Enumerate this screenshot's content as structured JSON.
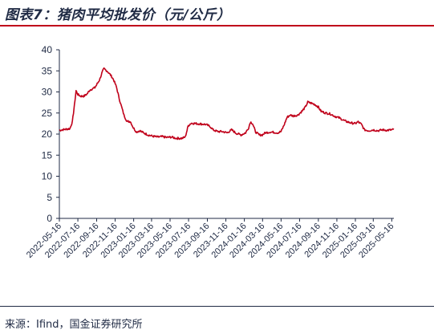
{
  "header": {
    "title": "图表7：猪肉平均批发价（元/公斤）"
  },
  "footer": {
    "source": "来源：Ifind，国金证券研究所"
  },
  "colors": {
    "line": "#c0001a",
    "text": "#1f2a44",
    "rule": "#c0001a"
  },
  "chart_data": {
    "type": "line",
    "title": "",
    "xlabel": "",
    "ylabel": "",
    "ylim": [
      0,
      40
    ],
    "yticks": [
      0,
      5,
      10,
      15,
      20,
      25,
      30,
      35,
      40
    ],
    "xlim": [
      "2022-05-16",
      "2025-05-23"
    ],
    "xtick_labels": [
      "2022-05-16",
      "2022-07-16",
      "2022-09-16",
      "2022-11-16",
      "2023-01-16",
      "2023-03-16",
      "2023-05-16",
      "2023-07-16",
      "2023-09-16",
      "2023-11-16",
      "2024-01-16",
      "2024-03-16",
      "2024-05-16",
      "2024-07-16",
      "2024-09-16",
      "2024-11-16",
      "2025-01-16",
      "2025-03-16",
      "2025-05-16"
    ],
    "grid": false,
    "legend": "none",
    "series": [
      {
        "name": "",
        "points": [
          [
            "2022-05-16",
            20.9
          ],
          [
            "2022-06-01",
            21.1
          ],
          [
            "2022-06-20",
            21.3
          ],
          [
            "2022-06-28",
            23.0
          ],
          [
            "2022-07-05",
            27.0
          ],
          [
            "2022-07-10",
            30.3
          ],
          [
            "2022-07-16",
            29.4
          ],
          [
            "2022-07-25",
            29.0
          ],
          [
            "2022-08-05",
            29.0
          ],
          [
            "2022-08-15",
            29.5
          ],
          [
            "2022-08-25",
            30.5
          ],
          [
            "2022-09-10",
            31.0
          ],
          [
            "2022-09-25",
            32.8
          ],
          [
            "2022-10-05",
            34.8
          ],
          [
            "2022-10-10",
            35.5
          ],
          [
            "2022-10-20",
            35.0
          ],
          [
            "2022-11-01",
            34.0
          ],
          [
            "2022-11-10",
            33.0
          ],
          [
            "2022-11-20",
            31.2
          ],
          [
            "2022-12-01",
            28.0
          ],
          [
            "2022-12-15",
            24.5
          ],
          [
            "2022-12-25",
            23.0
          ],
          [
            "2023-01-05",
            23.0
          ],
          [
            "2023-01-15",
            21.5
          ],
          [
            "2023-01-25",
            20.5
          ],
          [
            "2023-02-05",
            20.8
          ],
          [
            "2023-02-20",
            20.2
          ],
          [
            "2023-03-05",
            19.8
          ],
          [
            "2023-03-20",
            19.5
          ],
          [
            "2023-04-05",
            19.3
          ],
          [
            "2023-04-20",
            19.4
          ],
          [
            "2023-05-05",
            19.2
          ],
          [
            "2023-05-20",
            19.3
          ],
          [
            "2023-06-05",
            19.0
          ],
          [
            "2023-06-25",
            19.0
          ],
          [
            "2023-07-05",
            19.3
          ],
          [
            "2023-07-15",
            22.0
          ],
          [
            "2023-07-25",
            22.6
          ],
          [
            "2023-08-10",
            22.5
          ],
          [
            "2023-08-25",
            22.4
          ],
          [
            "2023-09-10",
            22.3
          ],
          [
            "2023-09-25",
            21.8
          ],
          [
            "2023-10-05",
            21.0
          ],
          [
            "2023-10-20",
            20.6
          ],
          [
            "2023-11-05",
            20.6
          ],
          [
            "2023-11-20",
            20.3
          ],
          [
            "2023-12-05",
            21.0
          ],
          [
            "2023-12-20",
            20.2
          ],
          [
            "2024-01-05",
            19.8
          ],
          [
            "2024-01-20",
            20.3
          ],
          [
            "2024-01-30",
            21.5
          ],
          [
            "2024-02-05",
            22.9
          ],
          [
            "2024-02-12",
            22.5
          ],
          [
            "2024-02-22",
            20.5
          ],
          [
            "2024-03-05",
            19.8
          ],
          [
            "2024-03-15",
            19.8
          ],
          [
            "2024-03-25",
            20.3
          ],
          [
            "2024-04-10",
            20.5
          ],
          [
            "2024-04-25",
            20.4
          ],
          [
            "2024-05-05",
            20.3
          ],
          [
            "2024-05-16",
            20.6
          ],
          [
            "2024-05-25",
            22.0
          ],
          [
            "2024-06-05",
            24.0
          ],
          [
            "2024-06-15",
            24.5
          ],
          [
            "2024-06-25",
            24.3
          ],
          [
            "2024-07-10",
            24.5
          ],
          [
            "2024-07-25",
            25.5
          ],
          [
            "2024-08-05",
            26.5
          ],
          [
            "2024-08-12",
            27.6
          ],
          [
            "2024-08-25",
            27.3
          ],
          [
            "2024-09-05",
            27.0
          ],
          [
            "2024-09-16",
            26.4
          ],
          [
            "2024-09-25",
            25.4
          ],
          [
            "2024-10-10",
            25.0
          ],
          [
            "2024-10-25",
            24.8
          ],
          [
            "2024-11-10",
            24.2
          ],
          [
            "2024-11-25",
            23.8
          ],
          [
            "2024-12-10",
            23.2
          ],
          [
            "2024-12-25",
            22.8
          ],
          [
            "2025-01-05",
            22.6
          ],
          [
            "2025-01-16",
            22.5
          ],
          [
            "2025-01-25",
            22.9
          ],
          [
            "2025-02-05",
            22.3
          ],
          [
            "2025-02-15",
            21.0
          ],
          [
            "2025-03-01",
            20.8
          ],
          [
            "2025-03-16",
            21.0
          ],
          [
            "2025-04-01",
            20.8
          ],
          [
            "2025-04-15",
            21.0
          ],
          [
            "2025-05-01",
            20.9
          ],
          [
            "2025-05-16",
            21.0
          ],
          [
            "2025-05-23",
            21.1
          ]
        ]
      }
    ]
  }
}
